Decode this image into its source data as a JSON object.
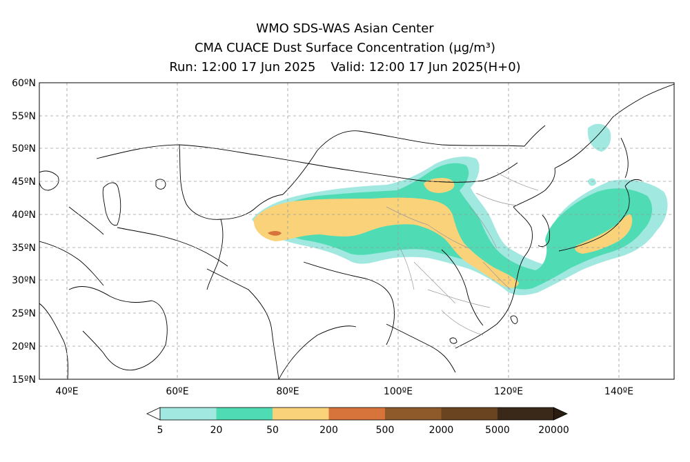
{
  "title": {
    "line1": "WMO SDS-WAS Asian Center",
    "line2": "CMA CUACE Dust Surface Concentration (μg/m³)",
    "run": "Run: 12:00 17 Jun 2025",
    "valid": "Valid: 12:00 17 Jun 2025(H+0)"
  },
  "axes": {
    "lat_labels": [
      "60ºN",
      "55ºN",
      "50ºN",
      "45ºN",
      "40ºN",
      "35ºN",
      "30ºN",
      "25ºN",
      "20ºN",
      "15ºN"
    ],
    "lon_labels": [
      "40ºE",
      "60ºE",
      "80ºE",
      "100ºE",
      "120ºE",
      "140ºE"
    ],
    "lat_range": [
      15,
      60
    ],
    "lon_range": [
      35,
      150
    ],
    "grid": "dashed"
  },
  "legend": {
    "levels": [
      "5",
      "20",
      "50",
      "200",
      "500",
      "2000",
      "5000",
      "20000"
    ],
    "colors": [
      "#a0e8e0",
      "#4fdcb4",
      "#fad27a",
      "#d6743c",
      "#8e5a2a",
      "#6a4420",
      "#3a2818"
    ],
    "under_color": "#ffffff",
    "over_color": "#2a1c10"
  },
  "colors": {
    "c1": "#a0e8e0",
    "c2": "#4fdcb4",
    "c3": "#fad27a",
    "c4": "#d6743c"
  }
}
